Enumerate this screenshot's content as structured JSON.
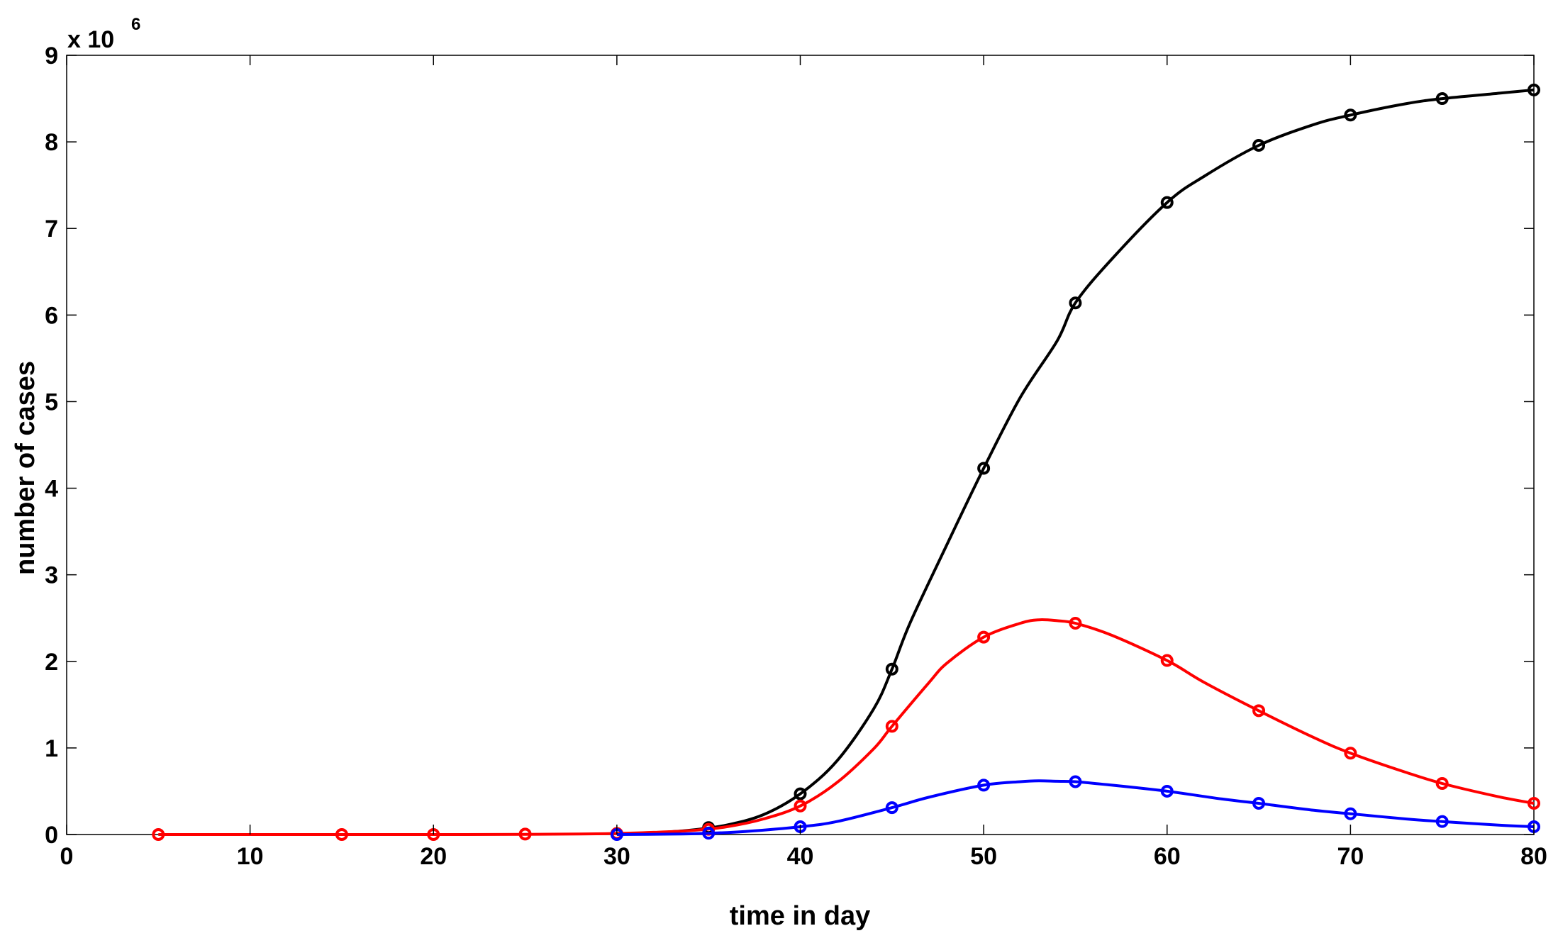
{
  "chart_data": {
    "type": "line",
    "title": "",
    "xlabel": "time in day",
    "ylabel": "number of cases",
    "xlim": [
      0,
      80
    ],
    "ylim": [
      0,
      9000000
    ],
    "xticks": [
      0,
      10,
      20,
      30,
      40,
      50,
      60,
      70,
      80
    ],
    "yticks": [
      0,
      1,
      2,
      3,
      4,
      5,
      6,
      7,
      8,
      9
    ],
    "y_multiplier": {
      "base": "x 10",
      "exponent": "6"
    },
    "grid": false,
    "legend": "none",
    "series": [
      {
        "color": "#000000",
        "marker": "circle",
        "curve": [
          [
            30,
            10000
          ],
          [
            32,
            20000
          ],
          [
            34,
            50000
          ],
          [
            36,
            110000
          ],
          [
            38,
            230000
          ],
          [
            40,
            470000
          ],
          [
            42,
            850000
          ],
          [
            44,
            1450000
          ],
          [
            45,
            1910000
          ],
          [
            46,
            2450000
          ],
          [
            48,
            3350000
          ],
          [
            50,
            4230000
          ],
          [
            52,
            5050000
          ],
          [
            54,
            5700000
          ],
          [
            55,
            6140000
          ],
          [
            57,
            6650000
          ],
          [
            60,
            7300000
          ],
          [
            62,
            7600000
          ],
          [
            65,
            7960000
          ],
          [
            68,
            8200000
          ],
          [
            70,
            8310000
          ],
          [
            73,
            8440000
          ],
          [
            75,
            8500000
          ],
          [
            78,
            8560000
          ],
          [
            80,
            8600000
          ]
        ],
        "points": [
          [
            35,
            80000
          ],
          [
            40,
            470000
          ],
          [
            45,
            1910000
          ],
          [
            50,
            4230000
          ],
          [
            55,
            6140000
          ],
          [
            60,
            7300000
          ],
          [
            65,
            7960000
          ],
          [
            70,
            8310000
          ],
          [
            75,
            8500000
          ],
          [
            80,
            8600000
          ]
        ]
      },
      {
        "color": "#ff0000",
        "marker": "circle",
        "curve": [
          [
            5,
            0
          ],
          [
            10,
            0
          ],
          [
            15,
            0
          ],
          [
            20,
            0
          ],
          [
            25,
            2000
          ],
          [
            28,
            6000
          ],
          [
            30,
            12000
          ],
          [
            32,
            25000
          ],
          [
            34,
            45000
          ],
          [
            36,
            90000
          ],
          [
            38,
            180000
          ],
          [
            40,
            330000
          ],
          [
            42,
            600000
          ],
          [
            44,
            990000
          ],
          [
            45,
            1250000
          ],
          [
            47,
            1750000
          ],
          [
            48,
            1980000
          ],
          [
            50,
            2280000
          ],
          [
            52,
            2440000
          ],
          [
            53,
            2480000
          ],
          [
            54,
            2470000
          ],
          [
            55,
            2440000
          ],
          [
            57,
            2300000
          ],
          [
            60,
            2010000
          ],
          [
            62,
            1760000
          ],
          [
            65,
            1430000
          ],
          [
            68,
            1120000
          ],
          [
            70,
            940000
          ],
          [
            73,
            720000
          ],
          [
            75,
            590000
          ],
          [
            78,
            440000
          ],
          [
            80,
            360000
          ]
        ],
        "points": [
          [
            5,
            0
          ],
          [
            15,
            0
          ],
          [
            20,
            0
          ],
          [
            25,
            5000
          ],
          [
            30,
            12000
          ],
          [
            35,
            60000
          ],
          [
            40,
            330000
          ],
          [
            45,
            1250000
          ],
          [
            50,
            2280000
          ],
          [
            55,
            2440000
          ],
          [
            60,
            2010000
          ],
          [
            65,
            1430000
          ],
          [
            70,
            940000
          ],
          [
            75,
            590000
          ],
          [
            80,
            360000
          ]
        ]
      },
      {
        "color": "#0000ff",
        "marker": "circle",
        "curve": [
          [
            30,
            0
          ],
          [
            33,
            5000
          ],
          [
            35,
            15000
          ],
          [
            37,
            35000
          ],
          [
            40,
            90000
          ],
          [
            42,
            150000
          ],
          [
            45,
            310000
          ],
          [
            47,
            430000
          ],
          [
            50,
            570000
          ],
          [
            52,
            610000
          ],
          [
            53,
            620000
          ],
          [
            54,
            615000
          ],
          [
            55,
            610000
          ],
          [
            57,
            570000
          ],
          [
            60,
            500000
          ],
          [
            63,
            410000
          ],
          [
            65,
            360000
          ],
          [
            68,
            280000
          ],
          [
            70,
            240000
          ],
          [
            73,
            180000
          ],
          [
            75,
            150000
          ],
          [
            78,
            110000
          ],
          [
            80,
            90000
          ]
        ],
        "points": [
          [
            30,
            0
          ],
          [
            35,
            15000
          ],
          [
            40,
            90000
          ],
          [
            45,
            310000
          ],
          [
            50,
            570000
          ],
          [
            55,
            610000
          ],
          [
            60,
            500000
          ],
          [
            65,
            360000
          ],
          [
            70,
            240000
          ],
          [
            75,
            150000
          ],
          [
            80,
            90000
          ]
        ]
      }
    ]
  }
}
